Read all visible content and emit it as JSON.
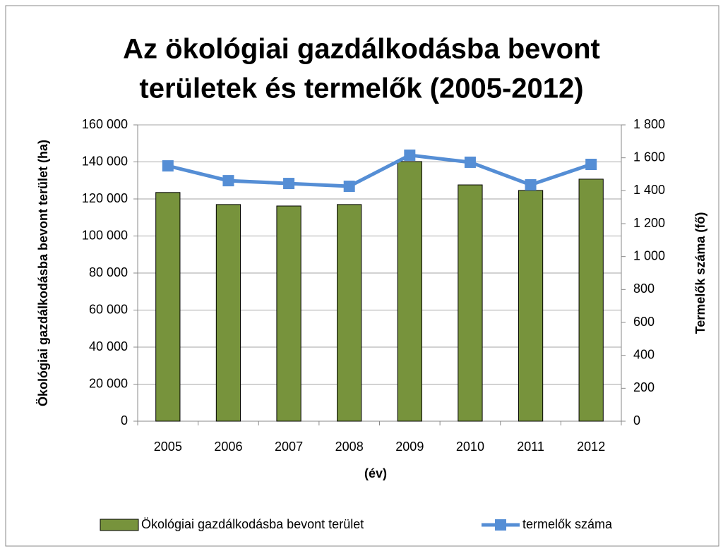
{
  "chart_data": {
    "type": "bar-line",
    "title": [
      "Az ökológiai gazdálkodásba bevont",
      "területek és termelők (2005-2012)"
    ],
    "x_label": "(év)",
    "y_label": "Ökológiai gazdálkodásba bevont terület (ha)",
    "y2_label": "Termelők száma (fő)",
    "categories": [
      "2005",
      "2006",
      "2007",
      "2008",
      "2009",
      "2010",
      "2011",
      "2012"
    ],
    "series": [
      {
        "name": "Ökológiai gazdálkodásba bevont terület",
        "type": "bar",
        "color": "#77933c",
        "values": [
          123500,
          117000,
          116200,
          117000,
          140200,
          127600,
          124600,
          130700
        ]
      },
      {
        "name": "termelők száma",
        "type": "line",
        "axis": "y2",
        "color": "#558ed5",
        "values": [
          1551,
          1461,
          1444,
          1427,
          1616,
          1573,
          1436,
          1560
        ]
      }
    ],
    "ylim": [
      0,
      160000
    ],
    "yticks": [
      0,
      {
        "value": 20000,
        "label": "20 000"
      },
      {
        "value": 40000,
        "label": "40 000"
      },
      {
        "value": 60000,
        "label": "60 000"
      },
      {
        "value": 80000,
        "label": "80 000"
      },
      {
        "value": 100000,
        "label": "100 000"
      },
      {
        "value": 120000,
        "label": "120 000"
      },
      {
        "value": 140000,
        "label": "140 000"
      },
      {
        "value": 160000,
        "label": "160 000"
      }
    ],
    "y2lim": [
      0,
      1800
    ],
    "y2ticks": [
      0,
      200,
      400,
      600,
      800,
      {
        "value": 1000,
        "label": "1 000"
      },
      {
        "value": 1200,
        "label": "1 200"
      },
      {
        "value": 1400,
        "label": "1 400"
      },
      {
        "value": 1600,
        "label": "1 600"
      },
      {
        "value": 1800,
        "label": "1 800"
      }
    ],
    "grid": true,
    "legend": "bottom"
  }
}
